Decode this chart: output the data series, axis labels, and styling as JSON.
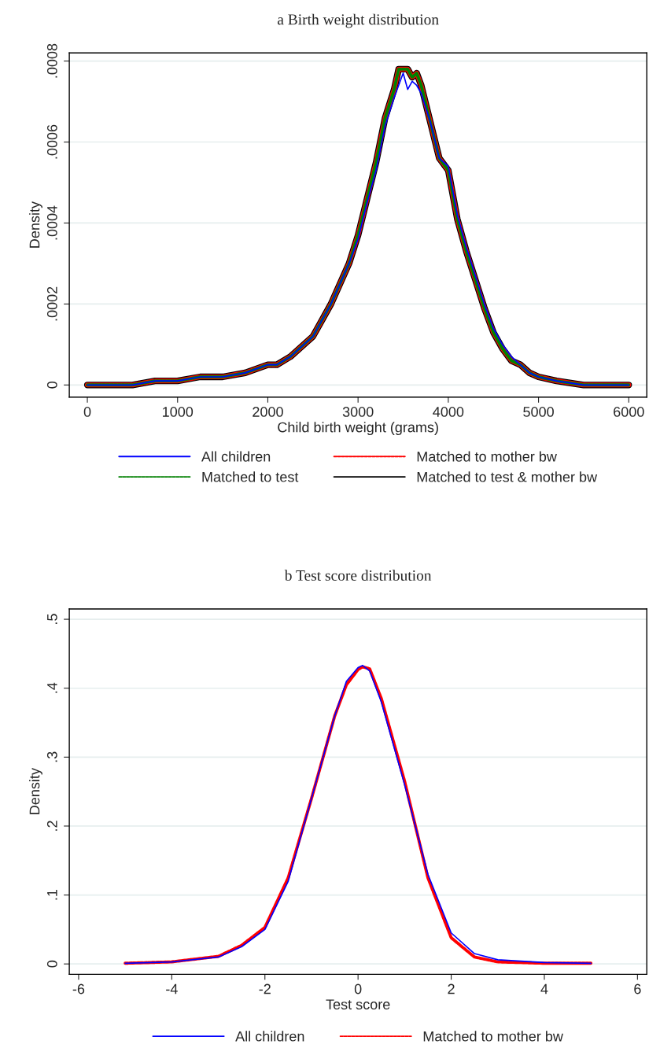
{
  "chart_data": [
    {
      "type": "line",
      "title": "a Birth weight distribution",
      "xlabel": "Child birth weight (grams)",
      "ylabel": "Density",
      "x": [
        0,
        250,
        500,
        750,
        1000,
        1250,
        1500,
        1750,
        2000,
        2100,
        2250,
        2400,
        2500,
        2600,
        2700,
        2800,
        2900,
        3000,
        3100,
        3200,
        3300,
        3400,
        3450,
        3500,
        3550,
        3600,
        3650,
        3700,
        3800,
        3900,
        4000,
        4100,
        4200,
        4300,
        4400,
        4500,
        4600,
        4700,
        4800,
        4900,
        5000,
        5200,
        5500,
        6000
      ],
      "series": [
        {
          "name": "All children",
          "color": "#0000ff",
          "line_style": "solid",
          "values": [
            0,
            0,
            0,
            1e-05,
            1e-05,
            2e-05,
            2e-05,
            3e-05,
            5e-05,
            5e-05,
            7e-05,
            0.0001,
            0.00012,
            0.00016,
            0.0002,
            0.00025,
            0.0003,
            0.00036,
            0.00045,
            0.00053,
            0.00064,
            0.00071,
            0.00074,
            0.00077,
            0.00073,
            0.00075,
            0.00074,
            0.00072,
            0.00065,
            0.00056,
            0.00054,
            0.00042,
            0.00034,
            0.00027,
            0.0002,
            0.00014,
            0.0001,
            7e-05,
            5e-05,
            3e-05,
            2e-05,
            1e-05,
            0,
            0
          ]
        },
        {
          "name": "Matched to test",
          "color": "#008000",
          "line_style": "dashed",
          "values": [
            0,
            0,
            0,
            1e-05,
            1e-05,
            2e-05,
            2e-05,
            3e-05,
            5e-05,
            5e-05,
            7e-05,
            0.0001,
            0.00012,
            0.00016,
            0.0002,
            0.00025,
            0.0003,
            0.00037,
            0.00046,
            0.00055,
            0.00066,
            0.00073,
            0.00078,
            0.00078,
            0.00078,
            0.00076,
            0.00077,
            0.00074,
            0.00065,
            0.00056,
            0.00053,
            0.00041,
            0.00033,
            0.00026,
            0.00019,
            0.00013,
            9e-05,
            6e-05,
            5e-05,
            3e-05,
            2e-05,
            1e-05,
            0,
            0
          ]
        },
        {
          "name": "Matched to mother bw",
          "color": "#ff0000",
          "line_style": "dashed",
          "values": [
            0,
            0,
            0,
            1e-05,
            1e-05,
            2e-05,
            2e-05,
            3e-05,
            5e-05,
            5e-05,
            7e-05,
            0.0001,
            0.00012,
            0.00016,
            0.0002,
            0.00025,
            0.0003,
            0.00037,
            0.00046,
            0.00055,
            0.00066,
            0.00073,
            0.00078,
            0.00078,
            0.00078,
            0.00076,
            0.00077,
            0.00074,
            0.00065,
            0.00056,
            0.00053,
            0.00041,
            0.00033,
            0.00026,
            0.00019,
            0.00013,
            9e-05,
            6e-05,
            5e-05,
            3e-05,
            2e-05,
            1e-05,
            0,
            0
          ]
        },
        {
          "name": "Matched to test & mother bw",
          "color": "#000000",
          "line_style": "solid",
          "values": [
            0,
            0,
            0,
            1e-05,
            1e-05,
            2e-05,
            2e-05,
            3e-05,
            5e-05,
            5e-05,
            7e-05,
            0.0001,
            0.00012,
            0.00016,
            0.0002,
            0.00025,
            0.0003,
            0.00037,
            0.00046,
            0.00055,
            0.00066,
            0.00073,
            0.00078,
            0.00078,
            0.00078,
            0.00076,
            0.00077,
            0.00074,
            0.00065,
            0.00056,
            0.00053,
            0.00041,
            0.00033,
            0.00026,
            0.00019,
            0.00013,
            9e-05,
            6e-05,
            5e-05,
            3e-05,
            2e-05,
            1e-05,
            0,
            0
          ]
        }
      ],
      "xlim": [
        -200,
        6200
      ],
      "xticks": [
        0,
        1000,
        2000,
        3000,
        4000,
        5000,
        6000
      ],
      "ylim": [
        -3e-05,
        0.00082
      ],
      "yticks": [
        0,
        {
          "value": 0.0002,
          "label": ".0002"
        },
        {
          "value": 0.0004,
          "label": ".0004"
        },
        {
          "value": 0.0006,
          "label": ".0006"
        },
        {
          "value": 0.0008,
          "label": ".0008"
        }
      ],
      "grid": "y",
      "legend": "bottom"
    },
    {
      "type": "line",
      "title": "b Test score distribution",
      "xlabel": "Test score",
      "ylabel": "Density",
      "x": [
        -5,
        -4,
        -3,
        -2.5,
        -2,
        -1.5,
        -1,
        -0.5,
        -0.25,
        0,
        0.1,
        0.25,
        0.5,
        1,
        1.5,
        2,
        2.5,
        3,
        4,
        5
      ],
      "series": [
        {
          "name": "All children",
          "color": "#0000ff",
          "line_style": "solid",
          "values": [
            0.001,
            0.003,
            0.01,
            0.025,
            0.05,
            0.12,
            0.24,
            0.36,
            0.41,
            0.43,
            0.433,
            0.425,
            0.38,
            0.26,
            0.13,
            0.045,
            0.015,
            0.006,
            0.002,
            0.001
          ]
        },
        {
          "name": "Matched to mother bw",
          "color": "#ff0000",
          "line_style": "dashed",
          "values": [
            0.001,
            0.003,
            0.011,
            0.027,
            0.053,
            0.125,
            0.24,
            0.36,
            0.405,
            0.427,
            0.431,
            0.428,
            0.385,
            0.265,
            0.125,
            0.038,
            0.01,
            0.003,
            0.001,
            0.001
          ]
        }
      ],
      "xlim": [
        -6.2,
        6.2
      ],
      "xticks": [
        -6,
        -4,
        -2,
        0,
        2,
        4,
        6
      ],
      "ylim": [
        -0.015,
        0.515
      ],
      "yticks": [
        0,
        {
          "value": 0.1,
          "label": ".1"
        },
        {
          "value": 0.2,
          "label": ".2"
        },
        {
          "value": 0.3,
          "label": ".3"
        },
        {
          "value": 0.4,
          "label": ".4"
        },
        {
          "value": 0.5,
          "label": ".5"
        }
      ],
      "grid": "y",
      "legend": "bottom"
    }
  ]
}
